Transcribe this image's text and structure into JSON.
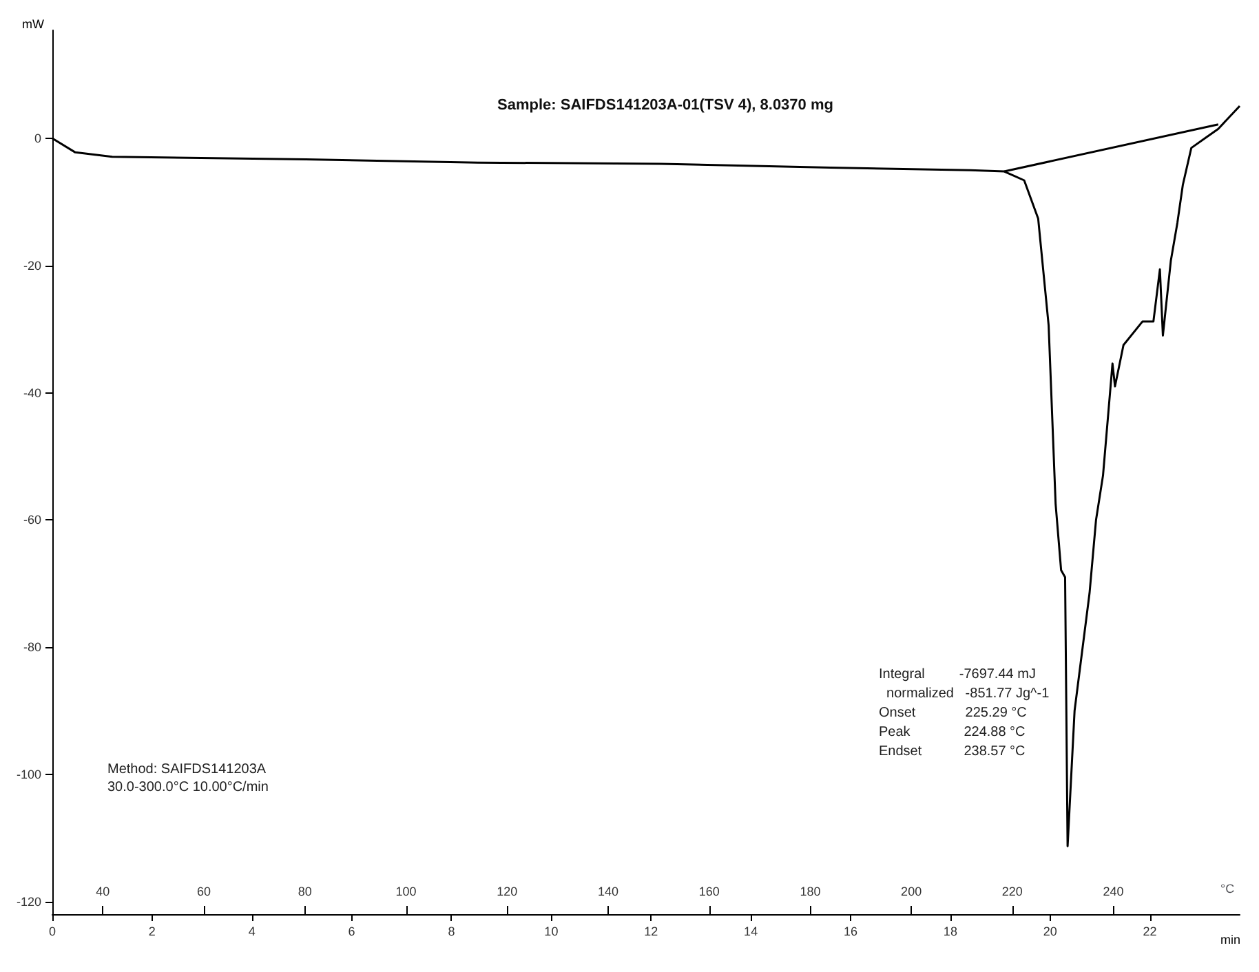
{
  "chart_data": {
    "type": "line",
    "title": "Sample: SAIFDS141203A-01(TSV 4), 8.0370 mg",
    "ylabel": "mW",
    "xlabel": "min",
    "x2label": "°C",
    "xlim": [
      0,
      23.8
    ],
    "xticks": [
      0,
      2,
      4,
      6,
      8,
      10,
      12,
      14,
      16,
      18,
      20,
      22
    ],
    "x2lim": [
      30,
      265
    ],
    "x2ticks": [
      40,
      60,
      80,
      100,
      120,
      140,
      160,
      180,
      200,
      220,
      240
    ],
    "ylim": [
      -122,
      17
    ],
    "yticks": [
      -120,
      -100,
      -80,
      -60,
      -40,
      -20,
      0
    ],
    "grid": false,
    "marker": "none",
    "line_style": "solid",
    "series": [
      {
        "color": "#000000",
        "x": [
          0,
          0.46,
          1.2,
          5.08,
          8.53,
          12.2,
          15.6,
          18.4,
          19.08,
          19.48,
          19.76,
          19.97,
          20.11,
          20.22,
          20.3,
          20.35,
          20.49,
          20.79,
          20.92,
          21.06,
          21.25,
          21.3,
          21.47,
          21.85,
          22.07,
          22.2,
          22.26,
          22.42,
          22.55,
          22.66,
          22.83,
          23.1,
          23.37,
          23.8
        ],
        "values": [
          0,
          -2.2,
          -2.9,
          -3.3,
          -3.8,
          -4.0,
          -4.6,
          -5.0,
          -5.2,
          -6.6,
          -12.6,
          -29.4,
          -57.5,
          -67.9,
          -69,
          -111.3,
          -90,
          -71.5,
          -60,
          -53,
          -35.4,
          -39,
          -32.5,
          -28.8,
          -28.8,
          -20.6,
          -31,
          -19.2,
          -13.3,
          -7.3,
          -1.5,
          0,
          1.5,
          5.1
        ]
      },
      {
        "color": "#000000",
        "x": [
          19.08,
          23.37
        ],
        "values": [
          -5.2,
          2.2
        ]
      }
    ],
    "annotations": [
      "Method: SAIFDS141203A",
      "30.0-300.0°C 10.00°C/min",
      "Integral         -7697.44 mJ",
      "  normalized   -851.77 Jg^-1",
      "Onset             225.29 °C",
      "Peak              224.88 °C",
      "Endset           238.57 °C"
    ]
  }
}
